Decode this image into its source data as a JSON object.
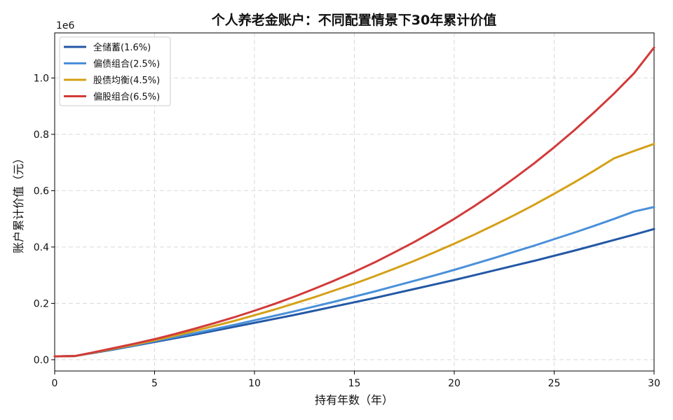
{
  "chart_data": {
    "type": "line",
    "title": "个人养老金账户：不同配置情景下30年累计价值",
    "xlabel": "持有年数（年）",
    "ylabel": "账户累计价值（元）",
    "y_scale_label": "1e6",
    "xlim": [
      0,
      30
    ],
    "ylim": [
      -0.04,
      1.16
    ],
    "x_ticks": [
      0,
      5,
      10,
      15,
      20,
      25,
      30
    ],
    "x_tick_labels": [
      "0",
      "5",
      "10",
      "15",
      "20",
      "25",
      "30"
    ],
    "y_ticks": [
      0.0,
      0.2,
      0.4,
      0.6,
      0.8,
      1.0
    ],
    "y_tick_labels": [
      "0.0",
      "0.2",
      "0.4",
      "0.6",
      "0.8",
      "1.0"
    ],
    "grid": true,
    "legend_position": "top-left",
    "x": [
      0,
      1,
      2,
      3,
      4,
      5,
      6,
      7,
      8,
      9,
      10,
      11,
      12,
      13,
      14,
      15,
      16,
      17,
      18,
      19,
      20,
      21,
      22,
      23,
      24,
      25,
      26,
      27,
      28,
      29,
      30
    ],
    "series": [
      {
        "name": "全储蓄(1.6%)",
        "color": "#2358a6",
        "values": [
          0.012,
          0.013,
          0.025,
          0.037,
          0.05,
          0.063,
          0.076,
          0.089,
          0.103,
          0.117,
          0.131,
          0.145,
          0.159,
          0.174,
          0.189,
          0.204,
          0.219,
          0.235,
          0.251,
          0.267,
          0.283,
          0.3,
          0.317,
          0.334,
          0.351,
          0.369,
          0.387,
          0.406,
          0.425,
          0.444,
          0.464
        ]
      },
      {
        "name": "偏债组合(2.5%)",
        "color": "#4a90d9",
        "values": [
          0.012,
          0.013,
          0.026,
          0.039,
          0.052,
          0.066,
          0.08,
          0.094,
          0.109,
          0.124,
          0.14,
          0.156,
          0.172,
          0.189,
          0.206,
          0.224,
          0.242,
          0.261,
          0.28,
          0.299,
          0.319,
          0.34,
          0.361,
          0.383,
          0.405,
          0.428,
          0.451,
          0.475,
          0.5,
          0.526,
          0.542
        ]
      },
      {
        "name": "股债均衡(4.5%)",
        "color": "#d4a017",
        "values": [
          0.012,
          0.013,
          0.026,
          0.04,
          0.054,
          0.069,
          0.085,
          0.102,
          0.12,
          0.138,
          0.158,
          0.178,
          0.2,
          0.222,
          0.246,
          0.27,
          0.296,
          0.323,
          0.351,
          0.381,
          0.412,
          0.444,
          0.478,
          0.513,
          0.55,
          0.589,
          0.629,
          0.671,
          0.715,
          0.741,
          0.766
        ]
      },
      {
        "name": "偏股组合(6.5%)",
        "color": "#d23a3a",
        "values": [
          0.012,
          0.013,
          0.027,
          0.042,
          0.057,
          0.073,
          0.091,
          0.11,
          0.13,
          0.151,
          0.174,
          0.198,
          0.224,
          0.252,
          0.281,
          0.312,
          0.345,
          0.381,
          0.418,
          0.458,
          0.5,
          0.545,
          0.593,
          0.644,
          0.697,
          0.754,
          0.814,
          0.878,
          0.945,
          1.017,
          1.108
        ]
      }
    ]
  }
}
